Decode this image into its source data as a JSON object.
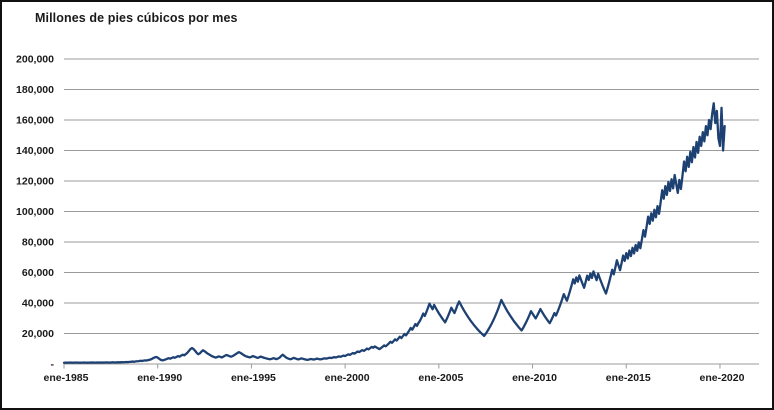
{
  "chart_data": {
    "type": "line",
    "title": "Millones de pies cúbicos por mes",
    "xlabel": "",
    "ylabel": "Millones de pies cúbicos por mes",
    "ylim": [
      0,
      200000
    ],
    "y_tick_interval": 20000,
    "y_tick_labels": [
      "-",
      "20,000",
      "40,000",
      "60,000",
      "80,000",
      "100,000",
      "120,000",
      "140,000",
      "160,000",
      "180,000",
      "200,000"
    ],
    "x_tick_labels": [
      "ene-1985",
      "ene-1990",
      "ene-1995",
      "ene-2000",
      "ene-2005",
      "ene-2010",
      "ene-2015",
      "ene-2020"
    ],
    "x_start": "ene-1985",
    "x_frequency": "monthly",
    "months_per_tick": 60,
    "grid": true,
    "legend": false,
    "line_color": "#1e4174",
    "grid_color": "#9b9b9b",
    "axis_color": "#9b9b9b",
    "text_color": "#1a1a1a",
    "values": [
      800,
      900,
      850,
      900,
      950,
      900,
      850,
      900,
      950,
      900,
      850,
      900,
      900,
      950,
      900,
      850,
      900,
      950,
      1000,
      950,
      900,
      950,
      1000,
      950,
      1000,
      950,
      1000,
      1050,
      1000,
      950,
      1000,
      1100,
      1050,
      1000,
      1100,
      1150,
      1100,
      1200,
      1150,
      1250,
      1300,
      1250,
      1400,
      1500,
      1600,
      1500,
      1700,
      1800,
      1900,
      2100,
      2000,
      2200,
      2400,
      2300,
      2600,
      2800,
      3200,
      3800,
      4300,
      4600,
      4200,
      3400,
      2700,
      2400,
      2600,
      3000,
      3400,
      3800,
      3500,
      4000,
      4400,
      4100,
      4600,
      5200,
      4800,
      5500,
      6100,
      5700,
      6500,
      7400,
      8600,
      9800,
      10500,
      9700,
      8600,
      7300,
      6400,
      7000,
      8100,
      9000,
      8400,
      7600,
      6800,
      6200,
      5600,
      5000,
      4600,
      4200,
      4500,
      5000,
      4700,
      4300,
      4800,
      5400,
      5900,
      5500,
      5100,
      4800,
      5200,
      5800,
      6500,
      7200,
      7800,
      7300,
      6600,
      5900,
      5300,
      4900,
      4600,
      4300,
      4700,
      5200,
      4800,
      4400,
      4000,
      4400,
      4900,
      4500,
      4100,
      3800,
      3500,
      3300,
      3100,
      3400,
      3800,
      3500,
      3200,
      3600,
      4100,
      5200,
      6100,
      5300,
      4400,
      3800,
      3400,
      3100,
      3500,
      4000,
      3700,
      3300,
      3000,
      3300,
      3700,
      3400,
      3100,
      2900,
      2700,
      3000,
      3300,
      3100,
      2900,
      3200,
      3500,
      3300,
      3000,
      3200,
      3500,
      3700,
      3500,
      3800,
      4100,
      3900,
      4200,
      4500,
      4300,
      4600,
      5000,
      4700,
      5100,
      5500,
      5200,
      5800,
      6300,
      6000,
      6600,
      7200,
      6800,
      7500,
      8200,
      7800,
      8500,
      9100,
      8600,
      9300,
      10100,
      9600,
      10400,
      11200,
      10700,
      11500,
      10900,
      10300,
      9800,
      10500,
      11300,
      12200,
      11600,
      12500,
      13500,
      14600,
      13900,
      15000,
      16200,
      15400,
      16600,
      17900,
      17000,
      18300,
      19700,
      18800,
      20300,
      21900,
      23600,
      22500,
      24300,
      26200,
      25000,
      27000,
      28500,
      30700,
      33100,
      31500,
      34000,
      36700,
      39600,
      37700,
      35900,
      38700,
      36800,
      35000,
      33300,
      31700,
      30200,
      28700,
      27300,
      29400,
      31700,
      34200,
      36900,
      35100,
      33400,
      36000,
      38800,
      41000,
      39000,
      37100,
      35300,
      33600,
      32000,
      30400,
      28900,
      27500,
      26200,
      24900,
      23700,
      22500,
      21400,
      20400,
      19400,
      18400,
      19800,
      21400,
      23100,
      24900,
      26800,
      28900,
      31200,
      33600,
      36200,
      39000,
      42000,
      40000,
      38100,
      36200,
      34400,
      32800,
      31200,
      29700,
      28200,
      26900,
      25600,
      24300,
      23100,
      22000,
      23700,
      25600,
      27600,
      29800,
      32100,
      34600,
      33000,
      31400,
      29900,
      31800,
      33800,
      36000,
      34300,
      32600,
      31000,
      29500,
      28100,
      26800,
      28800,
      31000,
      33400,
      31800,
      34200,
      36800,
      39600,
      42600,
      45800,
      43600,
      41500,
      44600,
      48000,
      51600,
      55500,
      52800,
      56800,
      54000,
      58100,
      55300,
      52600,
      50000,
      53800,
      57900,
      55100,
      59300,
      56400,
      60700,
      57800,
      55000,
      59200,
      56300,
      53600,
      51000,
      48500,
      46200,
      49700,
      53500,
      57500,
      61800,
      58800,
      63200,
      68000,
      64700,
      61500,
      66100,
      71100,
      67600,
      72700,
      69200,
      74400,
      70800,
      76200,
      72500,
      78000,
      74200,
      79800,
      75900,
      81600,
      87800,
      83500,
      89800,
      96600,
      91900,
      98800,
      94000,
      101100,
      96200,
      103500,
      98500,
      105900,
      113900,
      108400,
      116600,
      110900,
      119300,
      113500,
      121100,
      115200,
      123900,
      117900,
      112200,
      120700,
      114800,
      123500,
      132800,
      126400,
      135900,
      129300,
      139100,
      132300,
      142300,
      135400,
      145600,
      138500,
      149000,
      143000,
      152000,
      146000,
      156000,
      150000,
      160000,
      154000,
      164000,
      171000,
      158000,
      166000,
      148000,
      143000,
      168000,
      140000,
      156000
    ]
  }
}
